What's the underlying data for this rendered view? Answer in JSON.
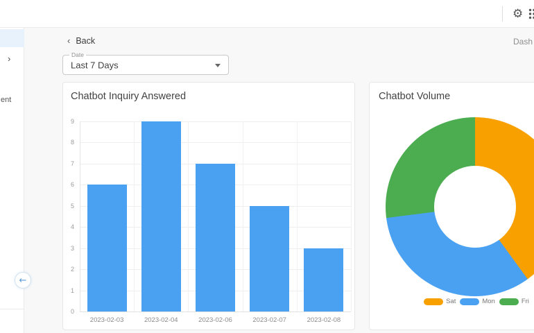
{
  "icons": {
    "gear": "⚙",
    "apps_grid": "grid-of-9-dots",
    "back_chevron": "‹",
    "sidebar_chevron": "›",
    "collapse_arrow": "←",
    "dropdown_caret": "filled-down-triangle"
  },
  "breadcrumb": {
    "dashboard_label": "Dash"
  },
  "toolbar": {
    "back_label": "Back"
  },
  "filters": {
    "date": {
      "label": "Date",
      "value": "Last 7 Days"
    }
  },
  "sidebar": {
    "partial_item_label": "ent"
  },
  "colors": {
    "bar_blue": "#4BA1F1",
    "orange": "#F7A000",
    "green": "#4BAD50",
    "sidebar_selected": "#E7F2FC"
  },
  "chart_data": [
    {
      "type": "bar",
      "title": "Chatbot Inquiry Answered",
      "categories": [
        "2023-02-03",
        "2023-02-04",
        "2023-02-06",
        "2023-02-07",
        "2023-02-08"
      ],
      "values": [
        6,
        9,
        7,
        5,
        3
      ],
      "xlabel": "",
      "ylabel": "",
      "ylim": [
        0,
        9
      ],
      "ytick_step": 1,
      "bar_color": "#4BA1F1",
      "grid": true,
      "legend_position": "none"
    },
    {
      "type": "pie",
      "donut": true,
      "title": "Chatbot Volume",
      "slices": [
        {
          "label": "Sat",
          "percent": 40,
          "color": "#F7A000"
        },
        {
          "label": "Mon",
          "percent": 33,
          "color": "#4BA1F1"
        },
        {
          "label": "Fri",
          "percent": 27,
          "color": "#4BAD50"
        }
      ],
      "start_angle_deg": 0,
      "legend_position": "bottom"
    }
  ]
}
